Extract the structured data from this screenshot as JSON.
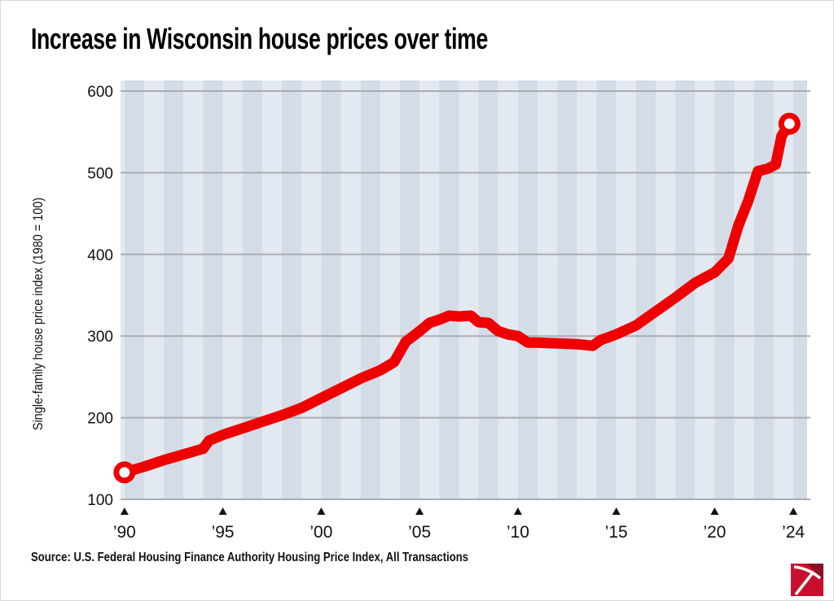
{
  "chart_data": {
    "type": "line",
    "title": "Increase in Wisconsin house prices over time",
    "xlabel": "",
    "ylabel": "Single-family house price index (1980 = 100)",
    "source": "Source: U.S. Federal Housing Finance Authority Housing Price Index, All Transactions",
    "xlim": [
      1989.8,
      2024.7
    ],
    "ylim": [
      100,
      600
    ],
    "yticks": [
      100,
      200,
      300,
      400,
      500,
      600
    ],
    "xticks": [
      {
        "value": 1990,
        "label": "’90"
      },
      {
        "value": 1995,
        "label": "’95"
      },
      {
        "value": 2000,
        "label": "’00"
      },
      {
        "value": 2005,
        "label": "’05"
      },
      {
        "value": 2010,
        "label": "’10"
      },
      {
        "value": 2015,
        "label": "’15"
      },
      {
        "value": 2020,
        "label": "’20"
      },
      {
        "value": 2024,
        "label": "’24"
      }
    ],
    "grid": "horizontal",
    "background": "alternating year stripes",
    "line_color": "#ee0000",
    "stripe_colors": [
      "#d3dce7",
      "#e3e9f0"
    ],
    "x": [
      1990,
      1991,
      1992,
      1993,
      1994,
      1994.3,
      1995,
      1996,
      1997,
      1998,
      1999,
      2000,
      2001,
      2002,
      2003,
      2003.7,
      2004.3,
      2005,
      2005.5,
      2006,
      2006.5,
      2007,
      2007.6,
      2008,
      2008.5,
      2009,
      2009.5,
      2010,
      2010.5,
      2011,
      2012,
      2013,
      2013.8,
      2014.2,
      2015,
      2016,
      2017,
      2018,
      2019,
      2020,
      2020.7,
      2021.2,
      2021.7,
      2022.2,
      2022.7,
      2023.1,
      2023.4,
      2023.8
    ],
    "y": [
      133,
      140,
      148,
      155,
      162,
      172,
      179,
      187,
      195,
      203,
      212,
      224,
      236,
      248,
      258,
      268,
      293,
      306,
      316,
      320,
      325,
      324,
      325,
      317,
      316,
      306,
      302,
      300,
      292,
      292,
      291,
      290,
      288,
      295,
      302,
      313,
      330,
      347,
      365,
      378,
      395,
      435,
      465,
      502,
      505,
      510,
      545,
      560
    ],
    "markers": [
      {
        "x": 1990,
        "y": 133,
        "style": "open-circle"
      },
      {
        "x": 2023.8,
        "y": 560,
        "style": "open-circle"
      }
    ]
  },
  "logo": {
    "name": "pickaxe-logo",
    "colors": [
      "#c8102e",
      "#8b1020"
    ]
  }
}
